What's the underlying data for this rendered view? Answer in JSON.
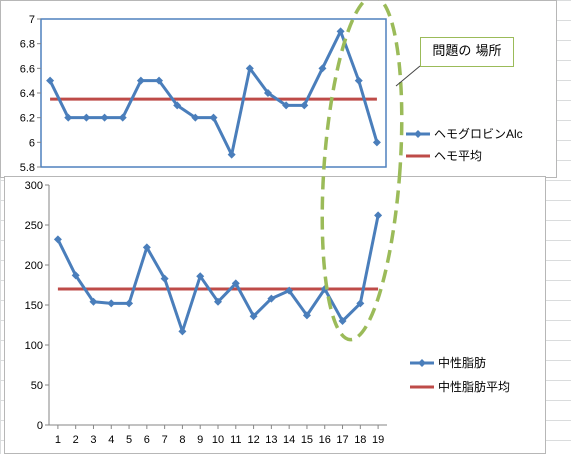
{
  "colors": {
    "series_line": "#4a7ebb",
    "average_line": "#be4b48",
    "callout_dash": "#9bbb59",
    "plot_border": "#4f81bd"
  },
  "callout": {
    "text": "問題の 場所"
  },
  "chart_data": [
    {
      "type": "line",
      "x": [
        1,
        2,
        3,
        4,
        5,
        6,
        7,
        8,
        9,
        10,
        11,
        12,
        13,
        14,
        15,
        16,
        17,
        18,
        19
      ],
      "series": [
        {
          "name": "ヘモグロビンAlc",
          "marker": "diamond",
          "color": "#4a7ebb",
          "values": [
            6.5,
            6.2,
            6.2,
            6.2,
            6.2,
            6.5,
            6.5,
            6.3,
            6.2,
            6.2,
            5.9,
            6.6,
            6.4,
            6.3,
            6.3,
            6.6,
            6.9,
            6.5,
            6.0
          ]
        },
        {
          "name": "ヘモ平均",
          "color": "#be4b48",
          "values": [
            6.35,
            6.35,
            6.35,
            6.35,
            6.35,
            6.35,
            6.35,
            6.35,
            6.35,
            6.35,
            6.35,
            6.35,
            6.35,
            6.35,
            6.35,
            6.35,
            6.35,
            6.35,
            6.35
          ]
        }
      ],
      "y_ticks": [
        "5.8",
        "6",
        "6.2",
        "6.4",
        "6.6",
        "6.8",
        "7"
      ],
      "ylim": [
        5.8,
        7
      ],
      "legend": "right",
      "grid": false
    },
    {
      "type": "line",
      "x": [
        1,
        2,
        3,
        4,
        5,
        6,
        7,
        8,
        9,
        10,
        11,
        12,
        13,
        14,
        15,
        16,
        17,
        18,
        19
      ],
      "x_ticks": [
        "1",
        "2",
        "3",
        "4",
        "5",
        "6",
        "7",
        "8",
        "9",
        "10",
        "11",
        "12",
        "13",
        "14",
        "15",
        "16",
        "17",
        "18",
        "19"
      ],
      "series": [
        {
          "name": "中性脂肪",
          "marker": "diamond",
          "color": "#4a7ebb",
          "values": [
            232,
            187,
            154,
            152,
            152,
            222,
            183,
            117,
            186,
            154,
            177,
            136,
            158,
            168,
            137,
            170,
            130,
            152,
            262
          ]
        },
        {
          "name": "中性脂肪平均",
          "color": "#be4b48",
          "values": [
            170,
            170,
            170,
            170,
            170,
            170,
            170,
            170,
            170,
            170,
            170,
            170,
            170,
            170,
            170,
            170,
            170,
            170,
            170
          ]
        }
      ],
      "y_ticks": [
        "0",
        "50",
        "100",
        "150",
        "200",
        "250",
        "300"
      ],
      "ylim": [
        0,
        300
      ],
      "legend": "right",
      "grid": false
    }
  ]
}
